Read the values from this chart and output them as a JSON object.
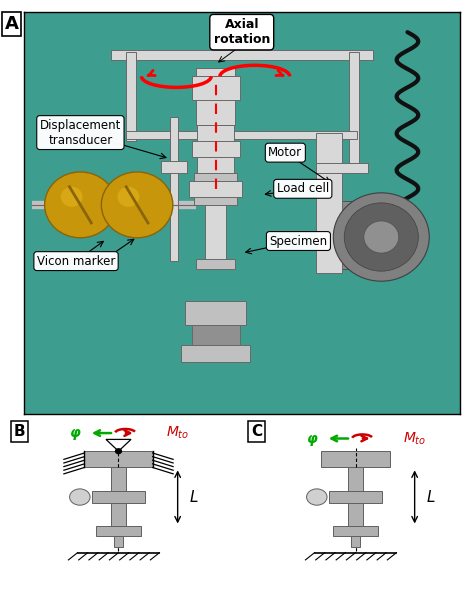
{
  "fig_width": 4.74,
  "fig_height": 6.04,
  "dpi": 100,
  "bg_color": "#ffffff",
  "teal_bg": "#3d9d8f",
  "photo_border": "#cccccc",
  "silver": "#c0c0c0",
  "lgray": "#d8d8d8",
  "dgray": "#686868",
  "brass": "#c8960a",
  "dark_brass": "#8a6408",
  "black": "#1a1a1a",
  "white_box": "#ffffff",
  "panel_A_label": "A",
  "panel_B_label": "B",
  "panel_C_label": "C",
  "ann_axial": "Axial\nrotation",
  "ann_motor": "Motor",
  "ann_disp": "Displacement\ntransducer",
  "ann_loadcell": "Load cell",
  "ann_vicon": "Vicon marker",
  "ann_specimen": "Specimen",
  "schema_gray": "#b0b0b0",
  "schema_lgray": "#d0d0d0",
  "schema_dgray": "#606060",
  "green_arrow": "#00aa00",
  "red_arrow": "#cc0000",
  "label_phi": "φ",
  "label_Mto": "$M_{to}$",
  "label_L": "L"
}
